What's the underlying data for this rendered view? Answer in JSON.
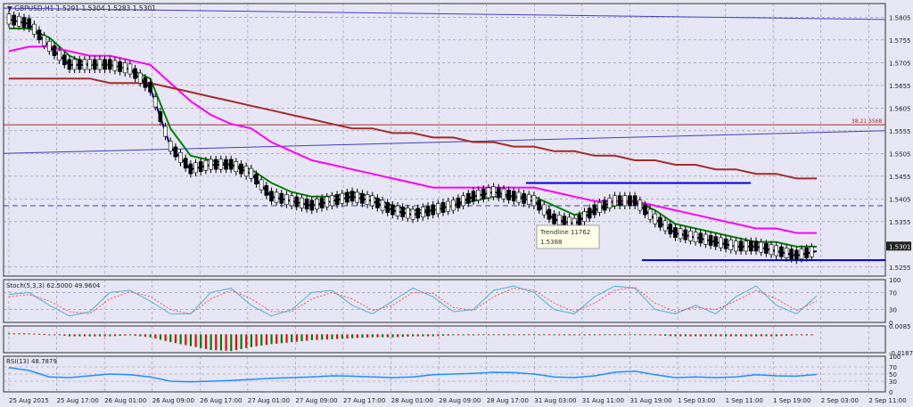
{
  "chart_data": [
    {
      "type": "line",
      "pane": "price",
      "title": "GBPUSD,H1",
      "ohlc_header": "1.5291 1.5304 1.5283 1.5301",
      "current_price_label": "1.5301",
      "ylim": [
        1.5235,
        1.5835
      ],
      "y_ticks": [
        "1.5805",
        "1.5755",
        "1.5705",
        "1.5655",
        "1.5605",
        "1.5555",
        "1.5505",
        "1.5455",
        "1.5405",
        "1.5355",
        "1.5255"
      ],
      "x_ticks": [
        "25 Aug 2015",
        "25 Aug 17:00",
        "26 Aug 01:00",
        "26 Aug 09:00",
        "26 Aug 17:00",
        "27 Aug 01:00",
        "27 Aug 09:00",
        "27 Aug 17:00",
        "28 Aug 01:00",
        "28 Aug 09:00",
        "28 Aug 17:00",
        "31 Aug 03:00",
        "31 Aug 11:00",
        "31 Aug 19:00",
        "1 Sep 03:00",
        "1 Sep 11:00",
        "1 Sep 19:00",
        "2 Sep 03:00",
        "2 Sep 11:00"
      ],
      "x": [
        0,
        5,
        10,
        15,
        20,
        25,
        30,
        35,
        40,
        45,
        50,
        55,
        60,
        65,
        70,
        75,
        80,
        85,
        90,
        95,
        100,
        105,
        110,
        115,
        120,
        125,
        130,
        135,
        140,
        145,
        150,
        155,
        160,
        165,
        170,
        175,
        180,
        185,
        190,
        195,
        200
      ],
      "series": [
        {
          "color": "#00008b",
          "values": [
            1.58,
            1.579,
            1.574,
            1.57,
            1.57,
            1.57,
            1.569,
            1.565,
            1.552,
            1.547,
            1.548,
            1.548,
            1.546,
            1.541,
            1.54,
            1.539,
            1.54,
            1.541,
            1.54,
            1.538,
            1.537,
            1.538,
            1.539,
            1.541,
            1.542,
            1.541,
            1.54,
            1.536,
            1.535,
            1.538,
            1.54,
            1.54,
            1.536,
            1.533,
            1.532,
            1.531,
            1.53,
            1.53,
            1.529,
            1.528,
            1.529
          ]
        },
        {
          "color": "#008000",
          "values": [
            1.578,
            1.578,
            1.576,
            1.572,
            1.57,
            1.57,
            1.569,
            1.567,
            1.556,
            1.55,
            1.549,
            1.548,
            1.547,
            1.544,
            1.542,
            1.541,
            1.541,
            1.542,
            1.541,
            1.539,
            1.538,
            1.538,
            1.539,
            1.54,
            1.541,
            1.541,
            1.541,
            1.539,
            1.537,
            1.538,
            1.539,
            1.54,
            1.538,
            1.535,
            1.534,
            1.533,
            1.532,
            1.531,
            1.531,
            1.53,
            1.53
          ]
        },
        {
          "color": "#ff00ff",
          "values": [
            1.573,
            1.574,
            1.574,
            1.573,
            1.572,
            1.572,
            1.571,
            1.57,
            1.566,
            1.562,
            1.559,
            1.557,
            1.556,
            1.553,
            1.551,
            1.549,
            1.548,
            1.547,
            1.546,
            1.545,
            1.544,
            1.543,
            1.543,
            1.543,
            1.543,
            1.543,
            1.543,
            1.542,
            1.541,
            1.54,
            1.54,
            1.54,
            1.539,
            1.538,
            1.537,
            1.536,
            1.535,
            1.534,
            1.534,
            1.533,
            1.533
          ]
        },
        {
          "color": "#a52a2a",
          "values": [
            1.567,
            1.567,
            1.567,
            1.567,
            1.567,
            1.566,
            1.566,
            1.566,
            1.565,
            1.564,
            1.563,
            1.562,
            1.561,
            1.56,
            1.559,
            1.558,
            1.557,
            1.556,
            1.556,
            1.555,
            1.555,
            1.554,
            1.554,
            1.553,
            1.553,
            1.552,
            1.552,
            1.551,
            1.551,
            1.55,
            1.55,
            1.549,
            1.549,
            1.548,
            1.548,
            1.547,
            1.547,
            1.546,
            1.546,
            1.545,
            1.545
          ]
        }
      ],
      "horizontal_lines": [
        {
          "y": 1.5568,
          "color": "#a52a2a",
          "label": "38.21 5568"
        },
        {
          "y": 1.527,
          "color": "#0000cd"
        },
        {
          "y": 1.539,
          "color": "#4040a0",
          "dashed": true
        }
      ],
      "annotations": [
        {
          "text": "Trendline 11762",
          "subtext": "1.5388"
        }
      ]
    },
    {
      "type": "line",
      "pane": "stochastic",
      "title": "Stoch(5,3,3) 62.5000 49.9604",
      "ylim": [
        0,
        100
      ],
      "y_ticks": [
        "100",
        "70",
        "30",
        "0"
      ],
      "x": [
        0,
        5,
        10,
        15,
        20,
        25,
        30,
        35,
        40,
        45,
        50,
        55,
        60,
        65,
        70,
        75,
        80,
        85,
        90,
        95,
        100,
        105,
        110,
        115,
        120,
        125,
        130,
        135,
        140,
        145,
        150,
        155,
        160,
        165,
        170,
        175,
        180,
        185,
        190,
        195,
        200
      ],
      "series": [
        {
          "color": "#4fb3d9",
          "values": [
            65,
            70,
            40,
            15,
            25,
            70,
            75,
            50,
            20,
            20,
            70,
            80,
            40,
            15,
            30,
            70,
            75,
            40,
            20,
            50,
            80,
            60,
            25,
            30,
            75,
            85,
            70,
            30,
            20,
            60,
            85,
            80,
            30,
            20,
            40,
            20,
            60,
            85,
            40,
            20,
            62
          ]
        },
        {
          "color": "#ff5050",
          "values": [
            60,
            65,
            50,
            25,
            20,
            55,
            72,
            60,
            30,
            20,
            55,
            75,
            55,
            25,
            25,
            55,
            70,
            55,
            28,
            40,
            70,
            68,
            35,
            28,
            60,
            80,
            75,
            45,
            25,
            45,
            75,
            82,
            45,
            25,
            35,
            30,
            50,
            75,
            55,
            28,
            50
          ]
        }
      ]
    },
    {
      "type": "bar",
      "pane": "macd",
      "title": "",
      "ylim": [
        -0.0187,
        0.0085
      ],
      "y_ticks": [
        "0.0085",
        "-0.0187"
      ],
      "x": [
        0,
        5,
        10,
        15,
        20,
        25,
        30,
        35,
        40,
        45,
        50,
        55,
        60,
        65,
        70,
        75,
        80,
        85,
        90,
        95,
        100,
        105,
        110,
        115,
        120,
        125,
        130,
        135,
        140,
        145,
        150,
        155,
        160,
        165,
        170,
        175,
        180,
        185,
        190,
        195,
        200
      ],
      "values": [
        0.001,
        0.001,
        0.0,
        -0.002,
        -0.002,
        -0.002,
        -0.001,
        -0.003,
        -0.008,
        -0.012,
        -0.016,
        -0.017,
        -0.013,
        -0.01,
        -0.008,
        -0.006,
        -0.005,
        -0.004,
        -0.003,
        -0.003,
        -0.002,
        -0.002,
        -0.001,
        -0.001,
        0.0,
        0.0,
        0.0,
        -0.001,
        -0.001,
        -0.001,
        0.0,
        0.0,
        -0.001,
        -0.002,
        -0.002,
        -0.002,
        -0.002,
        -0.002,
        -0.002,
        -0.001,
        -0.001
      ]
    },
    {
      "type": "line",
      "pane": "rsi",
      "title": "RSI(13) 48.7879",
      "ylim": [
        0,
        100
      ],
      "y_ticks": [
        "100",
        "70",
        "50",
        "30",
        "0"
      ],
      "x": [
        0,
        5,
        10,
        15,
        20,
        25,
        30,
        35,
        40,
        45,
        50,
        55,
        60,
        65,
        70,
        75,
        80,
        85,
        90,
        95,
        100,
        105,
        110,
        115,
        120,
        125,
        130,
        135,
        140,
        145,
        150,
        155,
        160,
        165,
        170,
        175,
        180,
        185,
        190,
        195,
        200
      ],
      "series": [
        {
          "color": "#1e90ff",
          "values": [
            68,
            60,
            42,
            40,
            45,
            50,
            48,
            42,
            30,
            28,
            30,
            32,
            35,
            38,
            40,
            42,
            45,
            44,
            42,
            40,
            42,
            48,
            50,
            52,
            55,
            54,
            50,
            42,
            40,
            45,
            55,
            58,
            48,
            40,
            42,
            40,
            42,
            48,
            45,
            44,
            49
          ]
        }
      ]
    }
  ]
}
